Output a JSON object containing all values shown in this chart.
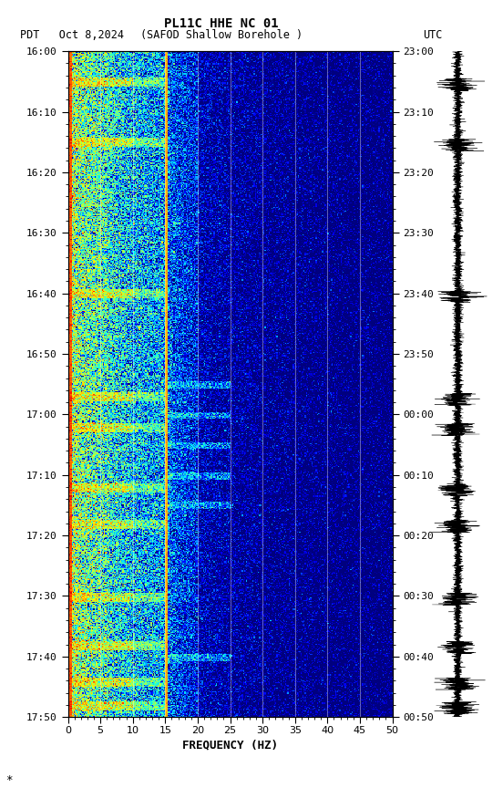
{
  "title_line1": "PL11C HHE NC 01",
  "title_line2_left": "PDT   Oct 8,2024",
  "title_line2_center": "(SAFOD Shallow Borehole )",
  "title_line2_right": "UTC",
  "xlabel": "FREQUENCY (HZ)",
  "left_times": [
    "16:00",
    "16:10",
    "16:20",
    "16:30",
    "16:40",
    "16:50",
    "17:00",
    "17:10",
    "17:20",
    "17:30",
    "17:40",
    "17:50"
  ],
  "right_times": [
    "23:00",
    "23:10",
    "23:20",
    "23:30",
    "23:40",
    "23:50",
    "00:00",
    "00:10",
    "00:20",
    "00:30",
    "00:40",
    "00:50"
  ],
  "freq_ticks": [
    0,
    5,
    10,
    15,
    20,
    25,
    30,
    35,
    40,
    45,
    50
  ],
  "time_minutes": 110,
  "background_color": "#ffffff",
  "fig_width": 5.52,
  "fig_height": 8.64,
  "dpi": 100,
  "vgrid_freqs": [
    5,
    10,
    15,
    20,
    25,
    30,
    35,
    40,
    45
  ]
}
